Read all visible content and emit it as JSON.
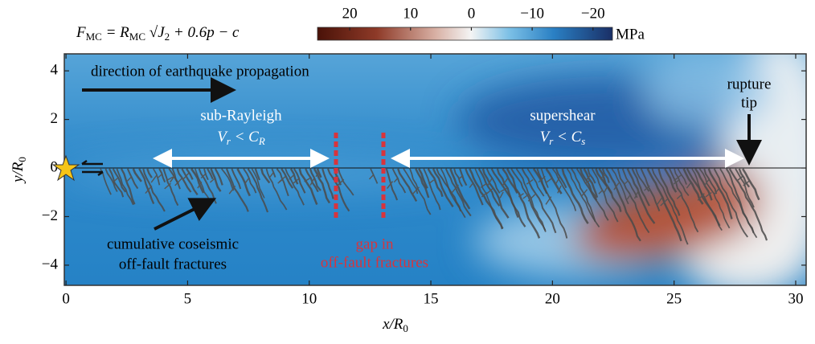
{
  "chart_data": {
    "type": "field",
    "title_parts": [
      "F",
      "MC",
      " = R",
      "MC",
      " √",
      "J",
      "2",
      " + 0.6p − c"
    ],
    "x_label_parts": [
      "x/R",
      "0"
    ],
    "y_label_parts": [
      "y/R",
      "0"
    ],
    "xlim": [
      -0.07,
      30.43
    ],
    "ylim": [
      -4.83,
      4.7
    ],
    "xticks": [
      0,
      5,
      10,
      15,
      20,
      25,
      30
    ],
    "yticks": [
      {
        "value": -4,
        "label": "−4"
      },
      {
        "value": -2,
        "label": "−2"
      },
      0,
      2,
      4
    ],
    "colorbar": {
      "label": "MPa",
      "lim": [
        25.3,
        -23.2
      ],
      "ticks": [
        20,
        10,
        0,
        {
          "value": -10,
          "label": "−10"
        },
        {
          "value": -20,
          "label": "−20"
        }
      ]
    },
    "annotations": {
      "propagation": "direction of earthquake propagation",
      "sub_rayleigh": "sub-Rayleigh",
      "sub_rayleigh_speed": [
        "V",
        "r",
        " < C",
        "R"
      ],
      "supershear": "supershear",
      "supershear_speed": [
        "V",
        "r",
        " < C",
        "s"
      ],
      "rupture_tip": [
        "rupture",
        "tip"
      ],
      "fractures": [
        "cumulative coseismic",
        "off-fault fractures"
      ],
      "gap": [
        "gap in",
        "off-fault fractures"
      ]
    }
  }
}
